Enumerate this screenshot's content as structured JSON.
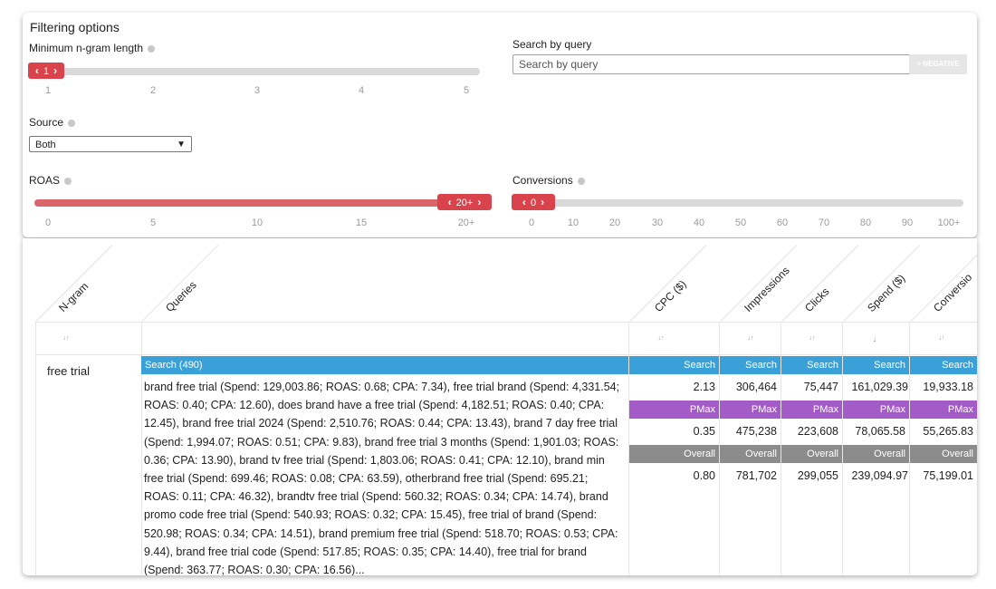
{
  "filters": {
    "title": "Filtering options",
    "min_ngram": {
      "label": "Minimum n-gram length",
      "value": "1",
      "ticks": [
        "1",
        "2",
        "3",
        "4",
        "5"
      ]
    },
    "search": {
      "label": "Search by query",
      "placeholder": "Search by query",
      "negative_label": "+ NEGATIVE"
    },
    "source": {
      "label": "Source",
      "selected": "Both"
    },
    "roas": {
      "label": "ROAS",
      "value": "20+",
      "fill_fraction": 1.0,
      "ticks": [
        "0",
        "5",
        "10",
        "15",
        "20+"
      ]
    },
    "conversions": {
      "label": "Conversions",
      "value": "0",
      "ticks": [
        "0",
        "10",
        "20",
        "30",
        "40",
        "50",
        "60",
        "70",
        "80",
        "90",
        "100+"
      ]
    }
  },
  "table": {
    "headers": [
      "N-gram",
      "Queries",
      "CPC ($)",
      "Impressions",
      "Clicks",
      "Spend ($)",
      "Conversio"
    ],
    "sort_icons": {
      "default": "↓↑",
      "active": "↓"
    },
    "row": {
      "ngram": "free trial",
      "queries_band": "Search (490)",
      "queries_text": "brand free trial (Spend: 129,003.86; ROAS: 0.68; CPA: 7.34), free trial brand (Spend: 4,331.54; ROAS: 0.40; CPA: 12.60), does brand have a free trial (Spend: 4,182.51; ROAS: 0.40; CPA: 12.45), brand free trial 2024 (Spend: 2,510.76; ROAS: 0.44; CPA: 13.43), brand 7 day free trial (Spend: 1,994.07; ROAS: 0.51; CPA: 9.83), brand free trial 3 months (Spend: 1,901.03; ROAS: 0.36; CPA: 13.90), brand tv free trial (Spend: 1,803.06; ROAS: 0.41; CPA: 12.10), brand min free trial (Spend: 699.46; ROAS: 0.08; CPA: 63.59), otherbrand free trial (Spend: 695.21; ROAS: 0.11; CPA: 46.32), brandtv free trial (Spend: 560.32; ROAS: 0.34; CPA: 14.74), brand promo code free trial (Spend: 540.93; ROAS: 0.32; CPA: 15.45), free trial of brand (Spend: 520.98; ROAS: 0.34; CPA: 14.51), brand premium free trial (Spend: 518.70; ROAS: 0.53; CPA: 9.44), brand free trial code (Spend: 517.85; ROAS: 0.35; CPA: 14.40), free trial for brand (Spend: 363.77; ROAS: 0.30; CPA: 16.56)...",
      "segments": [
        {
          "label": "Search",
          "cpc": "2.13",
          "impressions": "306,464",
          "clicks": "75,447",
          "spend": "161,029.39",
          "conversions": "19,933.18"
        },
        {
          "label": "PMax",
          "cpc": "0.35",
          "impressions": "475,238",
          "clicks": "223,608",
          "spend": "78,065.58",
          "conversions": "55,265.83"
        },
        {
          "label": "Overall",
          "cpc": "0.80",
          "impressions": "781,702",
          "clicks": "299,055",
          "spend": "239,094.97",
          "conversions": "75,199.01"
        }
      ]
    }
  },
  "colors": {
    "accent": "#d9434b",
    "search": "#3aa1d8",
    "pmax": "#a35bc7",
    "overall": "#8c8c8c"
  }
}
